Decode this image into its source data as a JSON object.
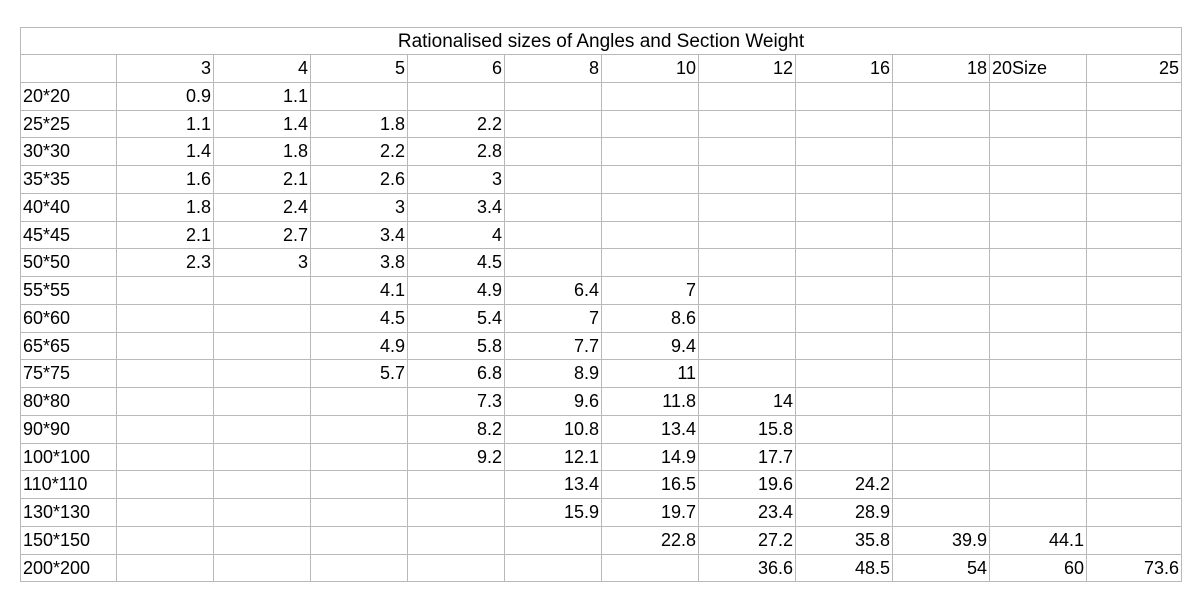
{
  "table": {
    "title": "Rationalised sizes of Angles and Section Weight",
    "header": [
      null,
      3,
      4,
      5,
      6,
      8,
      10,
      12,
      16,
      18,
      "20Size",
      25
    ],
    "rows": [
      [
        "20*20",
        0.9,
        1.1,
        null,
        null,
        null,
        null,
        null,
        null,
        null,
        null,
        null
      ],
      [
        "25*25",
        1.1,
        1.4,
        1.8,
        2.2,
        null,
        null,
        null,
        null,
        null,
        null,
        null
      ],
      [
        "30*30",
        1.4,
        1.8,
        2.2,
        2.8,
        null,
        null,
        null,
        null,
        null,
        null,
        null
      ],
      [
        "35*35",
        1.6,
        2.1,
        2.6,
        3,
        null,
        null,
        null,
        null,
        null,
        null,
        null
      ],
      [
        "40*40",
        1.8,
        2.4,
        3,
        3.4,
        null,
        null,
        null,
        null,
        null,
        null,
        null
      ],
      [
        "45*45",
        2.1,
        2.7,
        3.4,
        4,
        null,
        null,
        null,
        null,
        null,
        null,
        null
      ],
      [
        "50*50",
        2.3,
        3,
        3.8,
        4.5,
        null,
        null,
        null,
        null,
        null,
        null,
        null
      ],
      [
        "55*55",
        null,
        null,
        4.1,
        4.9,
        6.4,
        7,
        null,
        null,
        null,
        null,
        null
      ],
      [
        "60*60",
        null,
        null,
        4.5,
        5.4,
        7,
        8.6,
        null,
        null,
        null,
        null,
        null
      ],
      [
        "65*65",
        null,
        null,
        4.9,
        5.8,
        7.7,
        9.4,
        null,
        null,
        null,
        null,
        null
      ],
      [
        "75*75",
        null,
        null,
        5.7,
        6.8,
        8.9,
        11,
        null,
        null,
        null,
        null,
        null
      ],
      [
        "80*80",
        null,
        null,
        null,
        7.3,
        9.6,
        11.8,
        14,
        null,
        null,
        null,
        null
      ],
      [
        "90*90",
        null,
        null,
        null,
        8.2,
        10.8,
        13.4,
        15.8,
        null,
        null,
        null,
        null
      ],
      [
        "100*100",
        null,
        null,
        null,
        9.2,
        12.1,
        14.9,
        17.7,
        null,
        null,
        null,
        null
      ],
      [
        "110*110",
        null,
        null,
        null,
        null,
        13.4,
        16.5,
        19.6,
        24.2,
        null,
        null,
        null
      ],
      [
        "130*130",
        null,
        null,
        null,
        null,
        15.9,
        19.7,
        23.4,
        28.9,
        null,
        null,
        null
      ],
      [
        "150*150",
        null,
        null,
        null,
        null,
        null,
        22.8,
        27.2,
        35.8,
        39.9,
        44.1,
        null
      ],
      [
        "200*200",
        null,
        null,
        null,
        null,
        null,
        null,
        36.6,
        48.5,
        54,
        60,
        73.6
      ]
    ]
  }
}
